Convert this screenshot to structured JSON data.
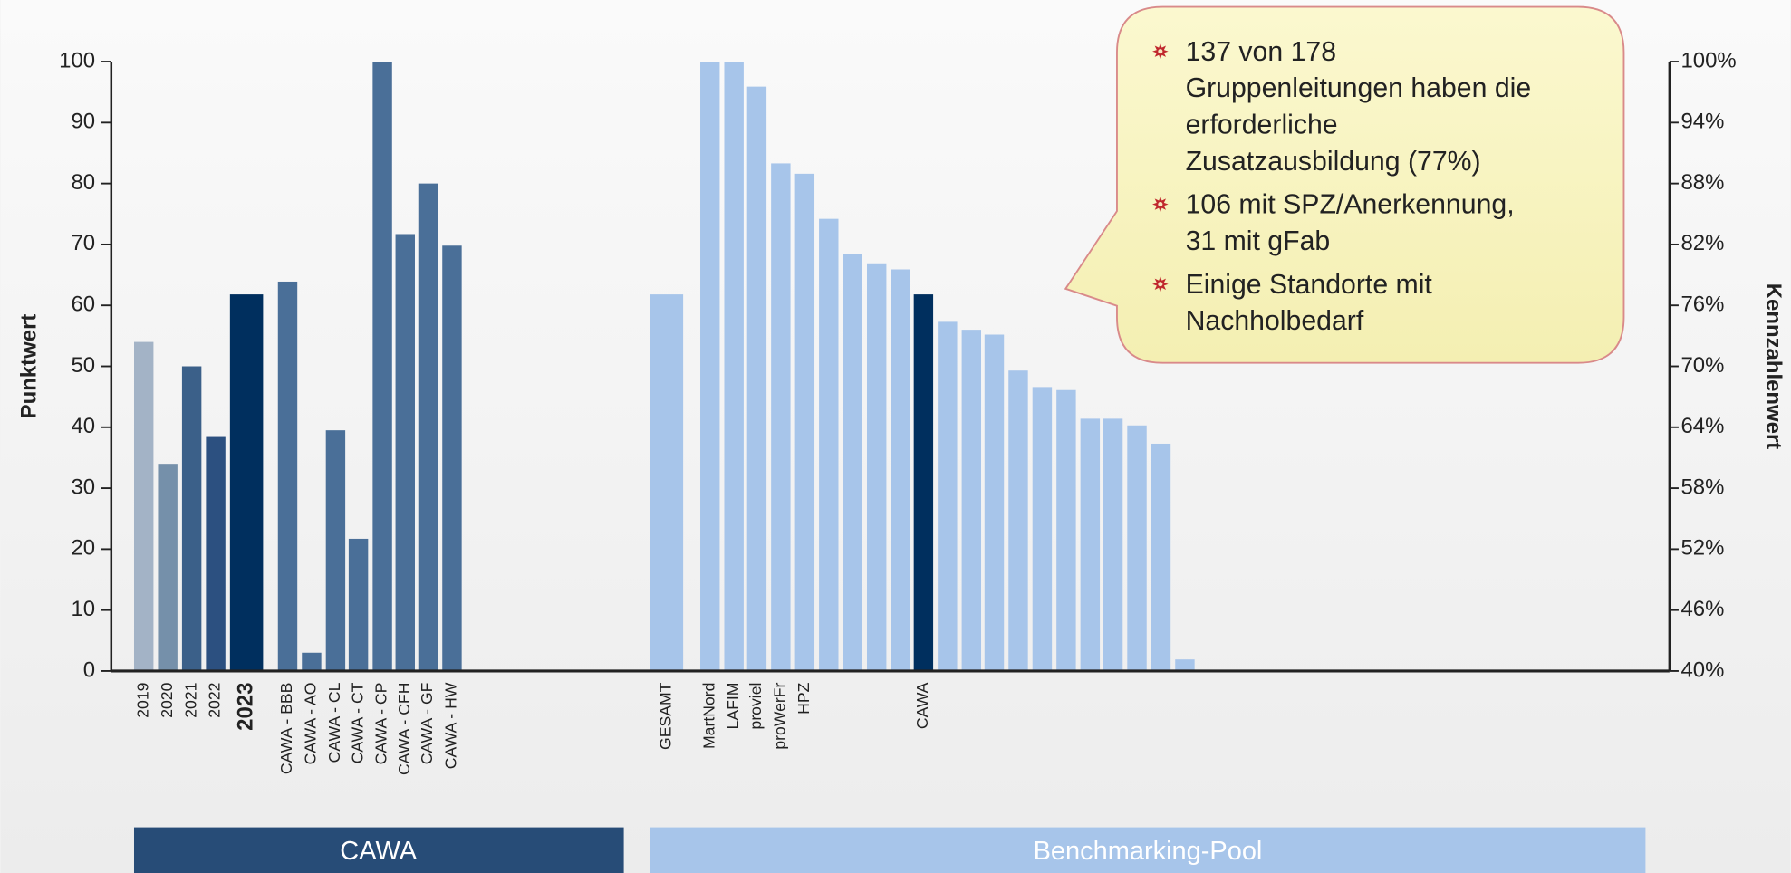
{
  "chart_data": {
    "type": "bar",
    "ylabel": "Punktwert",
    "y2label": "Kennzahlenwert",
    "categories": [
      "2019",
      "2020",
      "2021",
      "2022",
      "2023",
      "CAWA - BBB",
      "CAWA - AO",
      "CAWA - CL",
      "CAWA - CT",
      "CAWA - CP",
      "CAWA - CFH",
      "CAWA - GF",
      "CAWA - HW",
      "GESAMT",
      "MartNord",
      "LAFIM",
      "proviel",
      "proWerFr",
      "HPZ",
      null,
      null,
      null,
      null,
      "CAWA",
      null,
      null,
      null,
      null,
      null,
      null,
      null,
      null,
      null,
      null,
      null
    ],
    "values": [
      54,
      34,
      50,
      38.4,
      61.8,
      63.9,
      3,
      39.5,
      21.7,
      100,
      71.7,
      80,
      69.8,
      61.8,
      100,
      100,
      95.9,
      83.3,
      81.6,
      74.2,
      68.4,
      66.9,
      65.9,
      61.8,
      57.3,
      56,
      55.2,
      49.3,
      46.6,
      46.1,
      41.4,
      41.4,
      40.3,
      37.3,
      1.9
    ],
    "colors": [
      "#a3b3c6",
      "#7590aa",
      "#3b6089",
      "#2c5080",
      "#002f5e",
      "#4a6f98",
      "#4a6f98",
      "#4a6f98",
      "#4a6f98",
      "#4a6f98",
      "#4a6f98",
      "#4a6f98",
      "#4a6f98",
      "#a7c5ea",
      "#a7c5ea",
      "#a7c5ea",
      "#a7c5ea",
      "#a7c5ea",
      "#a7c5ea",
      "#a7c5ea",
      "#a7c5ea",
      "#a7c5ea",
      "#a7c5ea",
      "#002f5e",
      "#a7c5ea",
      "#a7c5ea",
      "#a7c5ea",
      "#a7c5ea",
      "#a7c5ea",
      "#a7c5ea",
      "#a7c5ea",
      "#a7c5ea",
      "#a7c5ea",
      "#a7c5ea",
      "#a7c5ea"
    ],
    "ylim": [
      0,
      100
    ],
    "yticks": [
      0,
      10,
      20,
      30,
      40,
      50,
      60,
      70,
      80,
      90,
      100
    ],
    "y2lim": [
      40,
      100
    ],
    "y2ticks": [
      {
        "value": 40,
        "label": "40%"
      },
      {
        "value": 46,
        "label": "46%"
      },
      {
        "value": 52,
        "label": "52%"
      },
      {
        "value": 58,
        "label": "58%"
      },
      {
        "value": 64,
        "label": "64%"
      },
      {
        "value": 70,
        "label": "70%"
      },
      {
        "value": 76,
        "label": "76%"
      },
      {
        "value": 82,
        "label": "82%"
      },
      {
        "value": 88,
        "label": "88%"
      },
      {
        "value": 94,
        "label": "94%"
      },
      {
        "value": 100,
        "label": "100%"
      }
    ]
  },
  "callout": {
    "items": [
      [
        "137 von 178",
        "Gruppenleitungen haben die",
        "erforderliche",
        "Zusatzausbildung (77%)"
      ],
      [
        "106 mit SPZ/Anerkennung,",
        "31 mit gFab"
      ],
      [
        "Einige Standorte mit",
        "Nachholbedarf"
      ]
    ]
  },
  "groups": [
    "CAWA",
    "Benchmarking-Pool"
  ]
}
